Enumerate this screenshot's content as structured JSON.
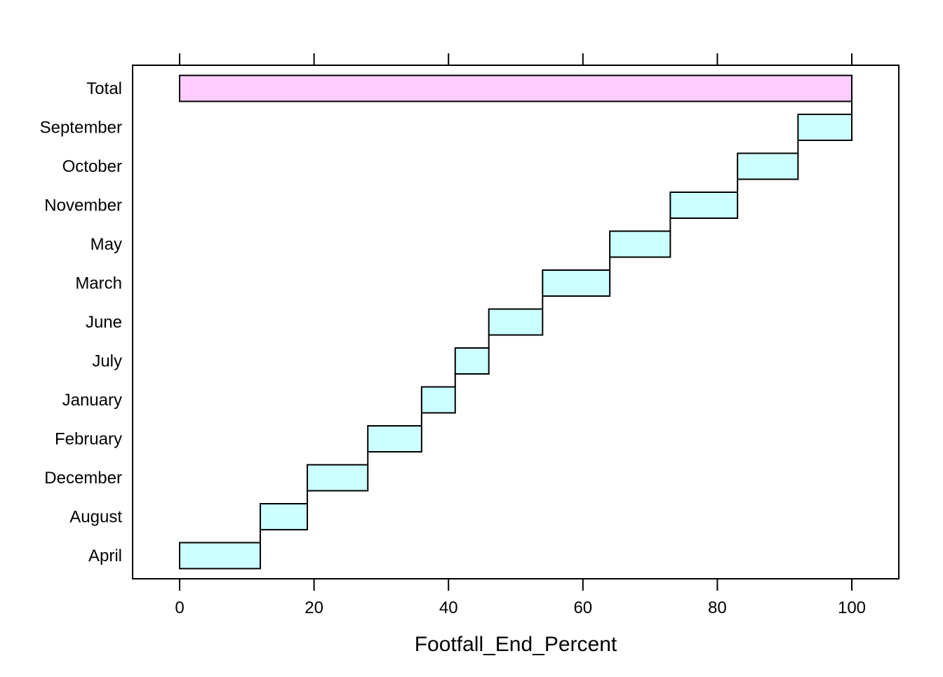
{
  "chart_data": {
    "type": "bar",
    "subtype": "waterfall",
    "orientation": "horizontal",
    "title": "",
    "xlabel": "Footfall_End_Percent",
    "ylabel": "",
    "xlim": [
      -7,
      107
    ],
    "x_ticks": [
      0,
      20,
      40,
      60,
      80,
      100
    ],
    "x_tick_labels": [
      "0",
      "20",
      "40",
      "60",
      "80",
      "100"
    ],
    "grid": false,
    "legend": "none",
    "colors": {
      "step_fill": "#ccffff",
      "total_fill": "#ffccff",
      "stroke": "#000000"
    },
    "categories": [
      "April",
      "August",
      "December",
      "February",
      "January",
      "July",
      "June",
      "March",
      "May",
      "November",
      "October",
      "September",
      "Total"
    ],
    "bars": [
      {
        "category": "April",
        "start": 0,
        "end": 12,
        "kind": "step"
      },
      {
        "category": "August",
        "start": 12,
        "end": 19,
        "kind": "step"
      },
      {
        "category": "December",
        "start": 19,
        "end": 28,
        "kind": "step"
      },
      {
        "category": "February",
        "start": 28,
        "end": 36,
        "kind": "step"
      },
      {
        "category": "January",
        "start": 36,
        "end": 41,
        "kind": "step"
      },
      {
        "category": "July",
        "start": 41,
        "end": 46,
        "kind": "step"
      },
      {
        "category": "June",
        "start": 46,
        "end": 54,
        "kind": "step"
      },
      {
        "category": "March",
        "start": 54,
        "end": 64,
        "kind": "step"
      },
      {
        "category": "May",
        "start": 64,
        "end": 73,
        "kind": "step"
      },
      {
        "category": "November",
        "start": 73,
        "end": 83,
        "kind": "step"
      },
      {
        "category": "October",
        "start": 83,
        "end": 92,
        "kind": "step"
      },
      {
        "category": "September",
        "start": 92,
        "end": 100,
        "kind": "step"
      },
      {
        "category": "Total",
        "start": 0,
        "end": 100,
        "kind": "total"
      }
    ]
  }
}
